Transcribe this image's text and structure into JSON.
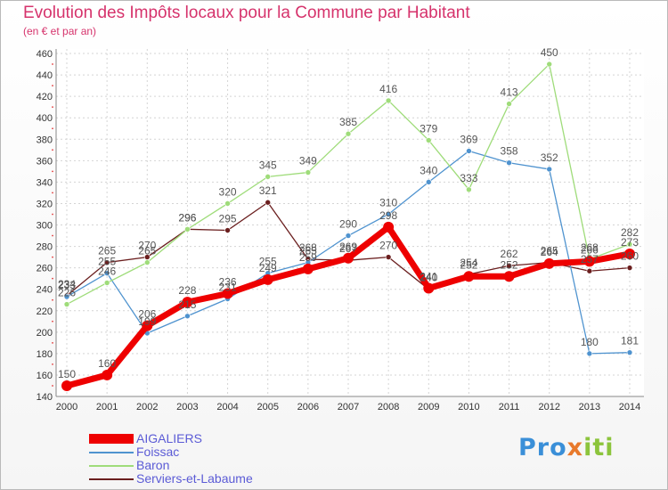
{
  "title": "Evolution des Impôts locaux pour la Commune par Habitant",
  "subtitle": "(en € et par an)",
  "logo": {
    "part1": "Pro",
    "part2": "x",
    "part3": "iti"
  },
  "chart_data": {
    "type": "line",
    "title": "Evolution des Impôts locaux pour la Commune par Habitant",
    "ylabel": "(en € et par an)",
    "xlabel": "",
    "ylim": [
      140,
      460
    ],
    "yticks": [
      140,
      160,
      180,
      200,
      220,
      240,
      260,
      280,
      300,
      320,
      340,
      360,
      380,
      400,
      420,
      440,
      460
    ],
    "x": [
      "2000",
      "2001",
      "2002",
      "2003",
      "2004",
      "2005",
      "2006",
      "2007",
      "2008",
      "2009",
      "2010",
      "2011",
      "2012",
      "2013",
      "2014"
    ],
    "grid": true,
    "legend_position": "bottom-left",
    "series": [
      {
        "name": "Serviers-et-Labaume",
        "color": "#6b1f1f",
        "width": 1.3,
        "marker": 3,
        "values": [
          234,
          265,
          270,
          296,
          295,
          321,
          268,
          267,
          270,
          240,
          254,
          262,
          265,
          257,
          260
        ]
      },
      {
        "name": "Foissac",
        "color": "#4f93cf",
        "width": 1.3,
        "marker": 3,
        "values": [
          233,
          255,
          199,
          215,
          231,
          255,
          265,
          290,
          310,
          340,
          369,
          358,
          352,
          180,
          181
        ]
      },
      {
        "name": "Baron",
        "color": "#9fdc7a",
        "width": 1.3,
        "marker": 3,
        "values": [
          226,
          246,
          265,
          296,
          320,
          345,
          349,
          385,
          416,
          379,
          333,
          413,
          450,
          268,
          282
        ]
      },
      {
        "name": "AIGALIERS",
        "color": "#ee0000",
        "width": 7,
        "marker": 6,
        "values": [
          150,
          160,
          206,
          228,
          236,
          249,
          259,
          269,
          298,
          241,
          252,
          252,
          264,
          266,
          273
        ]
      }
    ],
    "legend_order": [
      "AIGALIERS",
      "Foissac",
      "Baron",
      "Serviers-et-Labaume"
    ]
  }
}
